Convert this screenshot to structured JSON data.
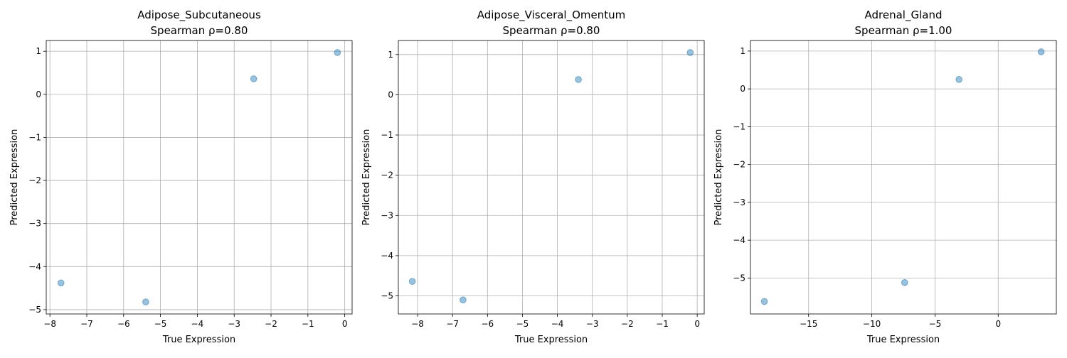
{
  "chart_data": [
    {
      "type": "scatter",
      "title": "Adipose_Subcutaneous",
      "subtitle": "Spearman ρ=0.80",
      "xlabel": "True Expression",
      "ylabel": "Predicted Expression",
      "xlim": [
        -8.1,
        0.2
      ],
      "ylim": [
        -5.1,
        1.25
      ],
      "xticks": [
        -8,
        -7,
        -6,
        -5,
        -4,
        -3,
        -2,
        -1,
        0
      ],
      "yticks": [
        -5,
        -4,
        -3,
        -2,
        -1,
        0,
        1
      ],
      "grid": true,
      "color": "#1f77b4",
      "points": [
        {
          "x": -7.7,
          "y": -4.38
        },
        {
          "x": -5.4,
          "y": -4.82
        },
        {
          "x": -2.47,
          "y": 0.36
        },
        {
          "x": -0.2,
          "y": 0.97
        }
      ]
    },
    {
      "type": "scatter",
      "title": "Adipose_Visceral_Omentum",
      "subtitle": "Spearman ρ=0.80",
      "xlabel": "True Expression",
      "ylabel": "Predicted Expression",
      "xlim": [
        -8.55,
        0.2
      ],
      "ylim": [
        -5.45,
        1.35
      ],
      "xticks": [
        -8,
        -7,
        -6,
        -5,
        -4,
        -3,
        -2,
        -1,
        0
      ],
      "yticks": [
        -5,
        -4,
        -3,
        -2,
        -1,
        0,
        1
      ],
      "grid": true,
      "color": "#1f77b4",
      "points": [
        {
          "x": -8.15,
          "y": -4.64
        },
        {
          "x": -6.7,
          "y": -5.1
        },
        {
          "x": -3.4,
          "y": 0.38
        },
        {
          "x": -0.2,
          "y": 1.05
        }
      ]
    },
    {
      "type": "scatter",
      "title": "Adrenal_Gland",
      "subtitle": "Spearman ρ=1.00",
      "xlabel": "True Expression",
      "ylabel": "Predicted Expression",
      "xlim": [
        -19.6,
        4.6
      ],
      "ylim": [
        -5.95,
        1.28
      ],
      "xticks": [
        -15,
        -10,
        -5,
        0
      ],
      "yticks": [
        -5,
        -4,
        -3,
        -2,
        -1,
        0,
        1
      ],
      "grid": true,
      "color": "#1f77b4",
      "points": [
        {
          "x": -18.5,
          "y": -5.62
        },
        {
          "x": -7.4,
          "y": -5.12
        },
        {
          "x": -3.1,
          "y": 0.25
        },
        {
          "x": 3.4,
          "y": 0.98
        }
      ]
    }
  ]
}
